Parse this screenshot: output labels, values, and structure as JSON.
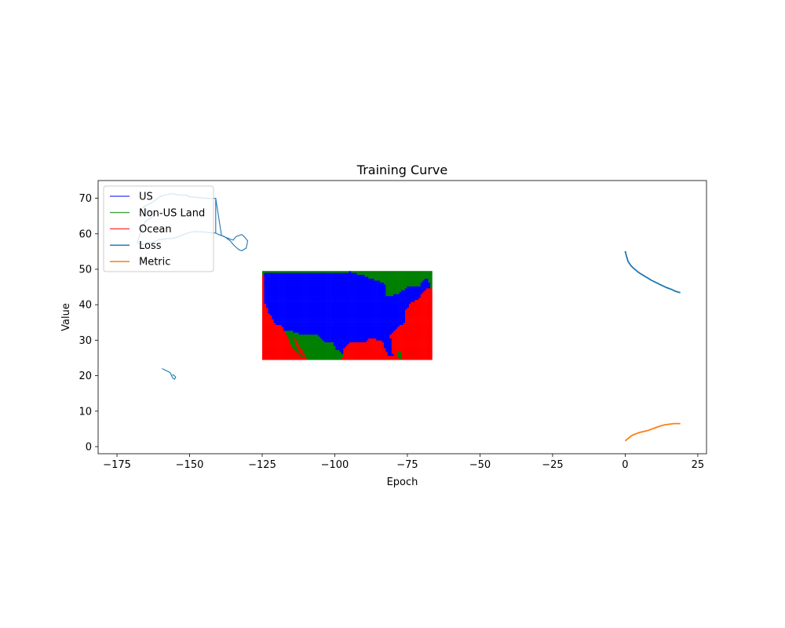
{
  "chart_data": {
    "type": "line",
    "title": "Training Curve",
    "xlabel": "Epoch",
    "ylabel": "Value",
    "xlim": [
      -181.5,
      28.0
    ],
    "ylim": [
      -2.0,
      75.0
    ],
    "xticks": [
      -175,
      -150,
      -125,
      -100,
      -75,
      -50,
      -25,
      0,
      25
    ],
    "xtick_labels": [
      "−175",
      "−150",
      "−125",
      "−100",
      "−75",
      "−50",
      "−25",
      "0",
      "25"
    ],
    "yticks": [
      0,
      10,
      20,
      30,
      40,
      50,
      60,
      70
    ],
    "ytick_labels": [
      "0",
      "10",
      "20",
      "30",
      "40",
      "50",
      "60",
      "70"
    ],
    "legend_position": "upper-left",
    "colors": {
      "us": "#0000ff",
      "non_us_land": "#008000",
      "ocean": "#ff0000",
      "loss": "#1f77b4",
      "metric": "#ff7f0e"
    },
    "legend": [
      {
        "label": "US",
        "color": "#0000ff",
        "width": 1
      },
      {
        "label": "Non-US Land",
        "color": "#008000",
        "width": 1
      },
      {
        "label": "Ocean",
        "color": "#ff0000",
        "width": 1
      },
      {
        "label": "Loss",
        "color": "#1f77b4",
        "width": 1.5
      },
      {
        "label": "Metric",
        "color": "#ff7f0e",
        "width": 1.5
      }
    ],
    "grid_region": {
      "lon_range": [
        -125,
        -66.5
      ],
      "lat_range": [
        24.5,
        49.5
      ]
    },
    "series": [
      {
        "name": "Loss",
        "x": [
          0,
          0.5,
          1,
          2,
          3,
          4,
          5,
          6,
          7,
          8,
          9,
          10,
          11,
          12,
          13,
          14,
          15,
          16,
          17,
          18,
          19
        ],
        "values": [
          55.1,
          53.5,
          52.2,
          51.0,
          50.2,
          49.5,
          48.9,
          48.4,
          47.9,
          47.4,
          46.9,
          46.5,
          46.1,
          45.7,
          45.3,
          44.9,
          44.6,
          44.3,
          43.9,
          43.6,
          43.4
        ]
      },
      {
        "name": "Metric",
        "x": [
          0,
          1,
          2,
          3,
          4,
          5,
          6,
          7,
          8,
          9,
          10,
          11,
          12,
          13,
          14,
          15,
          16,
          17,
          18,
          19
        ],
        "values": [
          1.6,
          2.3,
          3.0,
          3.4,
          3.7,
          4.0,
          4.2,
          4.4,
          4.6,
          4.9,
          5.2,
          5.5,
          5.8,
          6.0,
          6.2,
          6.3,
          6.4,
          6.5,
          6.5,
          6.5
        ]
      }
    ],
    "outline_series": [
      {
        "name": "Alaska",
        "x": [
          -141,
          -141,
          -143,
          -145,
          -148,
          -150,
          -152,
          -155,
          -157,
          -159,
          -161,
          -163,
          -165,
          -166,
          -168,
          -166,
          -165,
          -163,
          -162,
          -164,
          -166,
          -163,
          -160,
          -158,
          -156,
          -154,
          -152,
          -151,
          -150,
          -148,
          -146,
          -144,
          -142,
          -141,
          -139,
          -137,
          -136,
          -135,
          -134,
          -132,
          -131,
          -130,
          -130.5,
          -132,
          -133,
          -134,
          -135,
          -136,
          -138,
          -140,
          -141
        ],
        "y": [
          70,
          60.2,
          60.3,
          60.5,
          60.6,
          60.4,
          59.8,
          58.8,
          58.6,
          58.5,
          58.2,
          57.5,
          57.3,
          56.9,
          57.5,
          62.5,
          63.6,
          64.6,
          65.5,
          66.3,
          67.5,
          68.8,
          70.5,
          71.0,
          71.3,
          71.0,
          70.8,
          70.9,
          70.4,
          70.3,
          70.1,
          70.0,
          69.9,
          70.0,
          59.5,
          58.8,
          58.5,
          58.2,
          59.2,
          59.8,
          59.0,
          58.0,
          56.0,
          55.2,
          55.5,
          56.2,
          57.0,
          58.0,
          59.2,
          59.8,
          60.2
        ]
      },
      {
        "name": "Hawaii",
        "x": [
          -156,
          -155.5,
          -155,
          -154.8,
          -155.2,
          -155.8,
          -156,
          -156.6,
          -157.2,
          -158.0,
          -159.5
        ],
        "y": [
          20.2,
          20.2,
          19.8,
          19.5,
          19.0,
          19.3,
          19.6,
          20.8,
          21.1,
          21.4,
          22.0
        ]
      }
    ]
  }
}
